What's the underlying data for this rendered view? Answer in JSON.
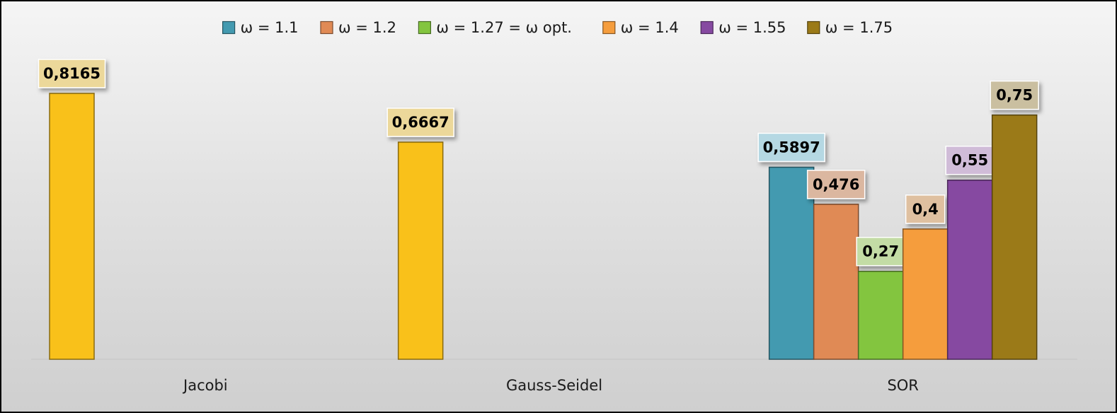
{
  "chart_data": {
    "type": "bar",
    "title": "",
    "xlabel": "",
    "ylabel": "",
    "ylim": [
      0,
      0.8165
    ],
    "grid": false,
    "legend_position": "top",
    "categories": [
      "Jacobi",
      "Gauss-Seidel",
      "SOR"
    ],
    "series": [
      {
        "name": "ω = 1.1",
        "color": "#439ab0",
        "label_bg": "#b5d8e3",
        "values": [
          0.8165,
          0.6667,
          0.5897
        ],
        "labels": [
          "0,8165",
          "0,6667",
          "0,5897"
        ],
        "bar_colors": [
          "#f9c11a",
          "#f9c11a",
          "#439ab0"
        ],
        "bar_label_bgs": [
          "#ecd89a",
          "#ecd89a",
          "#b5d8e3"
        ]
      },
      {
        "name": "ω = 1.2",
        "color": "#e08a55",
        "label_bg": "#dbb7a0",
        "values": [
          null,
          null,
          0.476
        ],
        "labels": [
          "",
          "",
          "0,476"
        ]
      },
      {
        "name": "ω = 1.27 = ω opt.",
        "color": "#83c53f",
        "label_bg": "#c3dca5",
        "values": [
          null,
          null,
          0.27
        ],
        "labels": [
          "",
          "",
          "0,27"
        ]
      },
      {
        "name": "ω = 1.4",
        "color": "#f59d3d",
        "label_bg": "#dfc0a0",
        "values": [
          null,
          null,
          0.4
        ],
        "labels": [
          "",
          "",
          "0,4"
        ]
      },
      {
        "name": "ω = 1.55",
        "color": "#8649a1",
        "label_bg": "#d0bcd8",
        "values": [
          null,
          null,
          0.55
        ],
        "labels": [
          "",
          "",
          "0,55"
        ]
      },
      {
        "name": "ω = 1.75",
        "color": "#9b7a18",
        "label_bg": "#cabfa0",
        "values": [
          null,
          null,
          0.75
        ],
        "labels": [
          "",
          "",
          "0,75"
        ]
      }
    ]
  }
}
